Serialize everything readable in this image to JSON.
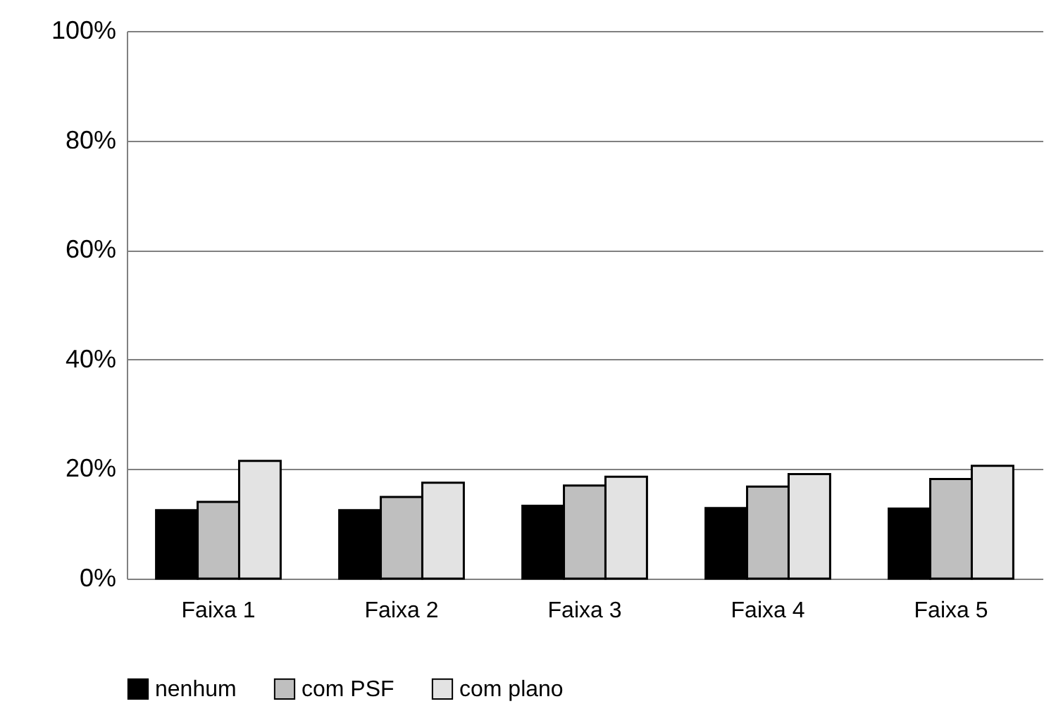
{
  "chart_data": {
    "type": "bar",
    "categories": [
      "Faixa 1",
      "Faixa 2",
      "Faixa 3",
      "Faixa 4",
      "Faixa 5"
    ],
    "series": [
      {
        "name": "nenhum",
        "color": "#000000",
        "values": [
          12.5,
          12.5,
          13.3,
          12.9,
          12.8
        ]
      },
      {
        "name": "com PSF",
        "color": "#bfbfbf",
        "values": [
          14.0,
          14.9,
          17.0,
          16.8,
          18.2
        ]
      },
      {
        "name": "com plano",
        "color": "#e3e3e3",
        "values": [
          21.5,
          17.5,
          18.6,
          19.1,
          20.6
        ]
      }
    ],
    "ylim": [
      0,
      100
    ],
    "yticks": [
      {
        "value": 0,
        "label": "0%"
      },
      {
        "value": 20,
        "label": "20%"
      },
      {
        "value": 40,
        "label": "40%"
      },
      {
        "value": 60,
        "label": "60%"
      },
      {
        "value": 80,
        "label": "80%"
      },
      {
        "value": 100,
        "label": "100%"
      }
    ],
    "grid": "y",
    "legend": "bottom"
  }
}
